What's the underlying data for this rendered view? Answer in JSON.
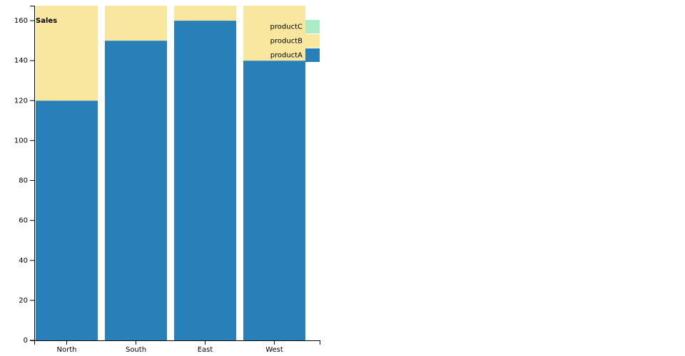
{
  "chart_data": {
    "type": "stacked_bar",
    "title": "Sales",
    "categories": [
      "North",
      "South",
      "East",
      "West"
    ],
    "series": [
      {
        "name": "productA",
        "color": "#2980b9",
        "values": [
          120,
          150,
          160,
          140
        ]
      },
      {
        "name": "productB",
        "color": "#f9e79f",
        "values": [
          48,
          18,
          8,
          28
        ]
      },
      {
        "name": "productC",
        "color": "#abebc6",
        "values": [
          0,
          0,
          0,
          0
        ]
      }
    ],
    "ylim": [
      0,
      167.5
    ],
    "yticks": [
      0,
      20,
      40,
      60,
      80,
      100,
      120,
      140,
      160
    ],
    "legend": "top-right"
  }
}
